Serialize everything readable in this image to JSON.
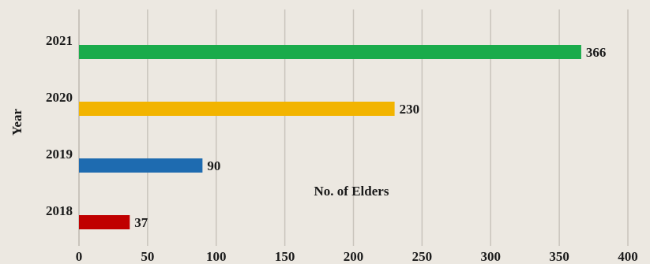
{
  "chart_data": {
    "type": "bar",
    "orientation": "horizontal",
    "categories": [
      "2018",
      "2019",
      "2020",
      "2021"
    ],
    "values": [
      37,
      90,
      230,
      366
    ],
    "colors": [
      "#c00000",
      "#1e6bb0",
      "#f2b400",
      "#1aab4b"
    ],
    "xlabel": "No. of Elders",
    "ylabel": "Year",
    "xlim": [
      0,
      400
    ],
    "xticks": [
      0,
      50,
      100,
      150,
      200,
      250,
      300,
      350,
      400
    ],
    "grid": "vertical",
    "data_labels": [
      "37",
      "90",
      "230",
      "366"
    ]
  }
}
